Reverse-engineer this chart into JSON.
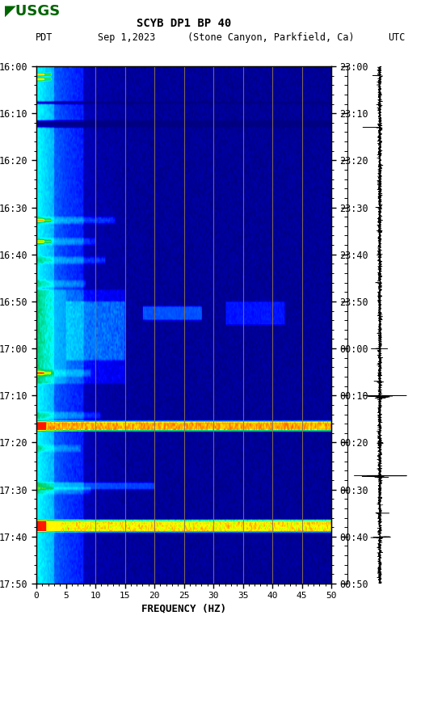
{
  "title_line1": "SCYB DP1 BP 40",
  "title_line2_left": "PDT   Sep 1,2023   (Stone Canyon, Parkfield, Ca)",
  "title_line2_right": "UTC",
  "xlabel": "FREQUENCY (HZ)",
  "freq_min": 0,
  "freq_max": 50,
  "freq_ticks": [
    0,
    5,
    10,
    15,
    20,
    25,
    30,
    35,
    40,
    45,
    50
  ],
  "left_time_labels": [
    "16:00",
    "16:10",
    "16:20",
    "16:30",
    "16:40",
    "16:50",
    "17:00",
    "17:10",
    "17:20",
    "17:30",
    "17:40",
    "17:50"
  ],
  "right_time_labels": [
    "23:00",
    "23:10",
    "23:20",
    "23:30",
    "23:40",
    "23:50",
    "00:00",
    "00:10",
    "00:20",
    "00:30",
    "00:40",
    "00:50"
  ],
  "grid_freqs": [
    10,
    15,
    20,
    25,
    30,
    35,
    40,
    45
  ],
  "grid_color": "#8B7355",
  "background_color": "#ffffff",
  "fig_width": 5.52,
  "fig_height": 8.92,
  "dpi": 100
}
